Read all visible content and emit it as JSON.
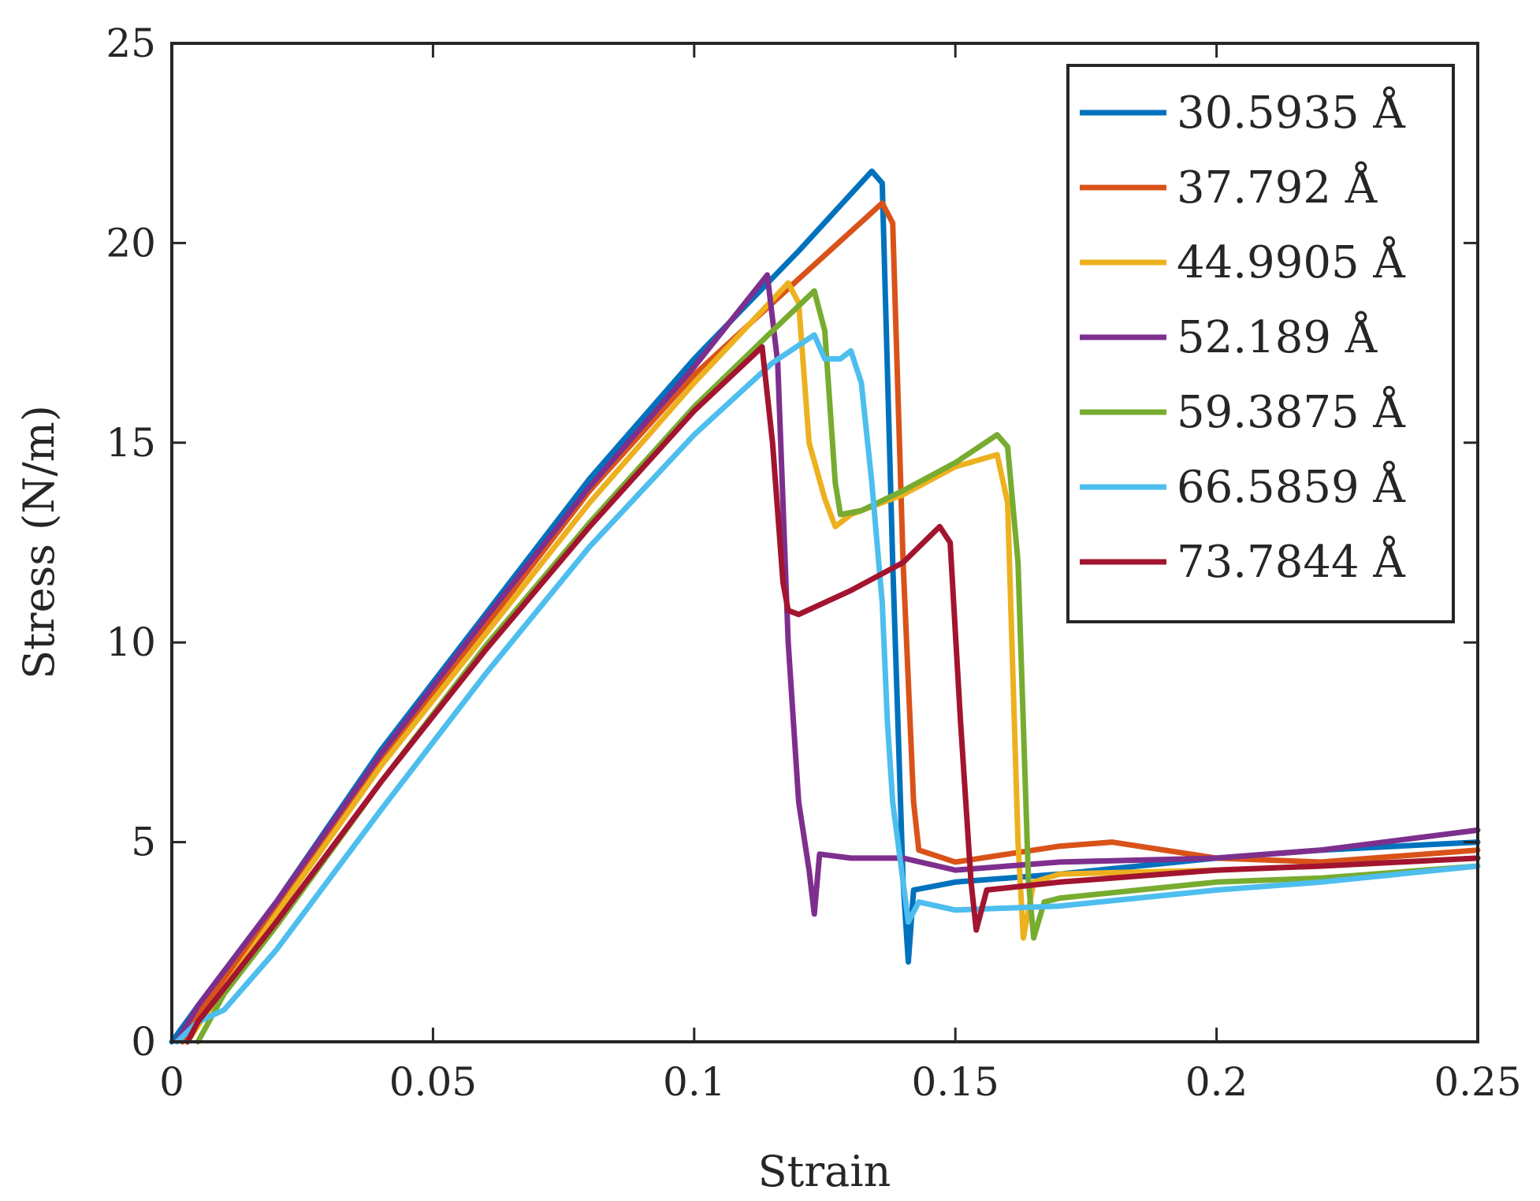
{
  "chart_data": {
    "type": "line",
    "title": "",
    "xlabel": "Strain",
    "ylabel": "Stress (N/m)",
    "xlim": [
      0,
      0.25
    ],
    "ylim": [
      0,
      25
    ],
    "xticks": [
      0,
      0.05,
      0.1,
      0.15,
      0.2,
      0.25
    ],
    "xtick_labels": [
      "0",
      "0.05",
      "0.1",
      "0.15",
      "0.2",
      "0.25"
    ],
    "yticks": [
      0,
      5,
      10,
      15,
      20,
      25
    ],
    "ytick_labels": [
      "0",
      "5",
      "10",
      "15",
      "20",
      "25"
    ],
    "grid": false,
    "legend_position": "top-right",
    "series": [
      {
        "name": "30.5935 Å",
        "color": "#0072BD",
        "points": [
          [
            0,
            0
          ],
          [
            0.005,
            0.9
          ],
          [
            0.02,
            3.5
          ],
          [
            0.04,
            7.3
          ],
          [
            0.06,
            10.7
          ],
          [
            0.08,
            14.1
          ],
          [
            0.1,
            17.1
          ],
          [
            0.12,
            19.8
          ],
          [
            0.134,
            21.8
          ],
          [
            0.136,
            21.5
          ],
          [
            0.138,
            12
          ],
          [
            0.14,
            4.0
          ],
          [
            0.141,
            2.0
          ],
          [
            0.142,
            3.8
          ],
          [
            0.15,
            4.0
          ],
          [
            0.17,
            4.2
          ],
          [
            0.2,
            4.6
          ],
          [
            0.22,
            4.8
          ],
          [
            0.25,
            5.0
          ]
        ]
      },
      {
        "name": "37.792 Å",
        "color": "#D95319",
        "points": [
          [
            0.002,
            0
          ],
          [
            0.005,
            0.7
          ],
          [
            0.02,
            3.3
          ],
          [
            0.04,
            7.0
          ],
          [
            0.06,
            10.4
          ],
          [
            0.08,
            13.8
          ],
          [
            0.1,
            16.7
          ],
          [
            0.12,
            19.1
          ],
          [
            0.136,
            21.0
          ],
          [
            0.138,
            20.5
          ],
          [
            0.14,
            12
          ],
          [
            0.142,
            6.0
          ],
          [
            0.143,
            4.8
          ],
          [
            0.15,
            4.5
          ],
          [
            0.16,
            4.7
          ],
          [
            0.17,
            4.9
          ],
          [
            0.18,
            5.0
          ],
          [
            0.2,
            4.6
          ],
          [
            0.22,
            4.5
          ],
          [
            0.25,
            4.8
          ]
        ]
      },
      {
        "name": "44.9905 Å",
        "color": "#EDB120",
        "points": [
          [
            0.003,
            0
          ],
          [
            0.006,
            0.6
          ],
          [
            0.02,
            3.2
          ],
          [
            0.04,
            6.9
          ],
          [
            0.06,
            10.2
          ],
          [
            0.08,
            13.5
          ],
          [
            0.1,
            16.5
          ],
          [
            0.118,
            19.0
          ],
          [
            0.12,
            18.5
          ],
          [
            0.122,
            15.0
          ],
          [
            0.125,
            13.6
          ],
          [
            0.127,
            12.9
          ],
          [
            0.13,
            13.2
          ],
          [
            0.14,
            13.7
          ],
          [
            0.15,
            14.4
          ],
          [
            0.158,
            14.7
          ],
          [
            0.16,
            13.5
          ],
          [
            0.162,
            5
          ],
          [
            0.163,
            2.6
          ],
          [
            0.165,
            4.0
          ],
          [
            0.17,
            4.2
          ],
          [
            0.2,
            4.3
          ],
          [
            0.22,
            4.4
          ],
          [
            0.25,
            4.6
          ]
        ]
      },
      {
        "name": "52.189 Å",
        "color": "#7E2F8E",
        "points": [
          [
            0.001,
            0
          ],
          [
            0.005,
            0.9
          ],
          [
            0.02,
            3.5
          ],
          [
            0.04,
            7.2
          ],
          [
            0.06,
            10.6
          ],
          [
            0.08,
            13.9
          ],
          [
            0.1,
            16.9
          ],
          [
            0.114,
            19.2
          ],
          [
            0.116,
            17
          ],
          [
            0.118,
            10
          ],
          [
            0.12,
            6
          ],
          [
            0.122,
            4.3
          ],
          [
            0.123,
            3.2
          ],
          [
            0.124,
            4.7
          ],
          [
            0.13,
            4.6
          ],
          [
            0.14,
            4.6
          ],
          [
            0.15,
            4.3
          ],
          [
            0.17,
            4.5
          ],
          [
            0.2,
            4.6
          ],
          [
            0.22,
            4.8
          ],
          [
            0.25,
            5.3
          ]
        ]
      },
      {
        "name": "59.3875 Å",
        "color": "#77AC30",
        "points": [
          [
            0.005,
            0
          ],
          [
            0.01,
            1.2
          ],
          [
            0.02,
            2.9
          ],
          [
            0.04,
            6.5
          ],
          [
            0.06,
            9.9
          ],
          [
            0.08,
            13.0
          ],
          [
            0.1,
            15.9
          ],
          [
            0.115,
            17.8
          ],
          [
            0.123,
            18.8
          ],
          [
            0.125,
            17.8
          ],
          [
            0.127,
            14.0
          ],
          [
            0.128,
            13.2
          ],
          [
            0.132,
            13.3
          ],
          [
            0.14,
            13.8
          ],
          [
            0.15,
            14.5
          ],
          [
            0.158,
            15.2
          ],
          [
            0.16,
            14.9
          ],
          [
            0.162,
            12
          ],
          [
            0.164,
            4.0
          ],
          [
            0.165,
            2.6
          ],
          [
            0.167,
            3.5
          ],
          [
            0.17,
            3.6
          ],
          [
            0.2,
            4.0
          ],
          [
            0.22,
            4.1
          ],
          [
            0.25,
            4.4
          ]
        ]
      },
      {
        "name": "66.5859 Å",
        "color": "#4DBEEE",
        "points": [
          [
            0.001,
            0
          ],
          [
            0.005,
            0.5
          ],
          [
            0.01,
            0.8
          ],
          [
            0.02,
            2.3
          ],
          [
            0.04,
            5.8
          ],
          [
            0.06,
            9.2
          ],
          [
            0.08,
            12.4
          ],
          [
            0.1,
            15.2
          ],
          [
            0.115,
            17.0
          ],
          [
            0.123,
            17.7
          ],
          [
            0.125,
            17.1
          ],
          [
            0.128,
            17.1
          ],
          [
            0.13,
            17.3
          ],
          [
            0.132,
            16.5
          ],
          [
            0.134,
            14
          ],
          [
            0.136,
            11
          ],
          [
            0.137,
            8
          ],
          [
            0.138,
            6
          ],
          [
            0.14,
            4
          ],
          [
            0.141,
            3.0
          ],
          [
            0.143,
            3.5
          ],
          [
            0.15,
            3.3
          ],
          [
            0.17,
            3.4
          ],
          [
            0.2,
            3.8
          ],
          [
            0.22,
            4.0
          ],
          [
            0.25,
            4.4
          ]
        ]
      },
      {
        "name": "73.7844 Å",
        "color": "#A2142F",
        "points": [
          [
            0.003,
            0
          ],
          [
            0.005,
            0.5
          ],
          [
            0.02,
            3.0
          ],
          [
            0.04,
            6.5
          ],
          [
            0.06,
            9.8
          ],
          [
            0.08,
            12.9
          ],
          [
            0.1,
            15.8
          ],
          [
            0.113,
            17.4
          ],
          [
            0.115,
            15
          ],
          [
            0.117,
            11.5
          ],
          [
            0.118,
            10.8
          ],
          [
            0.12,
            10.7
          ],
          [
            0.13,
            11.3
          ],
          [
            0.14,
            12.0
          ],
          [
            0.147,
            12.9
          ],
          [
            0.149,
            12.5
          ],
          [
            0.151,
            8
          ],
          [
            0.153,
            4
          ],
          [
            0.154,
            2.8
          ],
          [
            0.156,
            3.8
          ],
          [
            0.17,
            4.0
          ],
          [
            0.2,
            4.3
          ],
          [
            0.22,
            4.4
          ],
          [
            0.25,
            4.6
          ]
        ]
      }
    ]
  }
}
